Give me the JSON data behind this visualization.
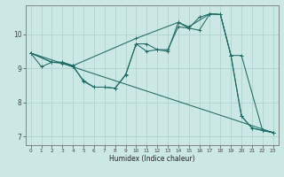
{
  "xlabel": "Humidex (Indice chaleur)",
  "bg_color": "#cce8e5",
  "line_color": "#1e6b65",
  "grid_color": "#aacfcc",
  "xlim": [
    -0.5,
    23.5
  ],
  "ylim": [
    6.75,
    10.85
  ],
  "yticks": [
    7,
    8,
    9,
    10
  ],
  "xticks": [
    0,
    1,
    2,
    3,
    4,
    5,
    6,
    7,
    8,
    9,
    10,
    11,
    12,
    13,
    14,
    15,
    16,
    17,
    18,
    19,
    20,
    21,
    22,
    23
  ],
  "series": [
    {
      "x": [
        0,
        1,
        2,
        3,
        4,
        5,
        6,
        7,
        8,
        9,
        10,
        11,
        12,
        13,
        14,
        15,
        16,
        17,
        18,
        19,
        20,
        21,
        22,
        23
      ],
      "y": [
        9.45,
        9.05,
        9.18,
        9.15,
        9.05,
        8.65,
        8.45,
        8.45,
        8.42,
        8.82,
        9.72,
        9.5,
        9.55,
        9.5,
        10.35,
        10.18,
        10.12,
        10.6,
        10.58,
        9.38,
        7.6,
        7.25,
        7.18,
        7.12
      ],
      "marker": "+"
    },
    {
      "x": [
        0,
        2,
        3,
        4,
        5,
        6,
        7,
        8,
        9,
        10,
        11,
        12,
        13,
        14,
        15,
        16,
        17,
        18,
        19,
        20,
        21,
        22,
        23
      ],
      "y": [
        9.45,
        9.18,
        9.18,
        9.08,
        8.62,
        8.45,
        8.45,
        8.42,
        8.8,
        9.72,
        9.72,
        9.55,
        9.55,
        10.22,
        10.18,
        10.5,
        10.6,
        10.58,
        9.38,
        7.6,
        7.25,
        7.18,
        7.12
      ],
      "marker": "+"
    },
    {
      "x": [
        0,
        2,
        3,
        4,
        10,
        14,
        15,
        17,
        18,
        19,
        20,
        22,
        23
      ],
      "y": [
        9.45,
        9.18,
        9.18,
        9.08,
        9.88,
        10.35,
        10.22,
        10.6,
        10.58,
        9.38,
        9.38,
        7.18,
        7.12
      ],
      "marker": "+"
    },
    {
      "x": [
        0,
        23
      ],
      "y": [
        9.45,
        7.12
      ],
      "marker": null
    }
  ]
}
